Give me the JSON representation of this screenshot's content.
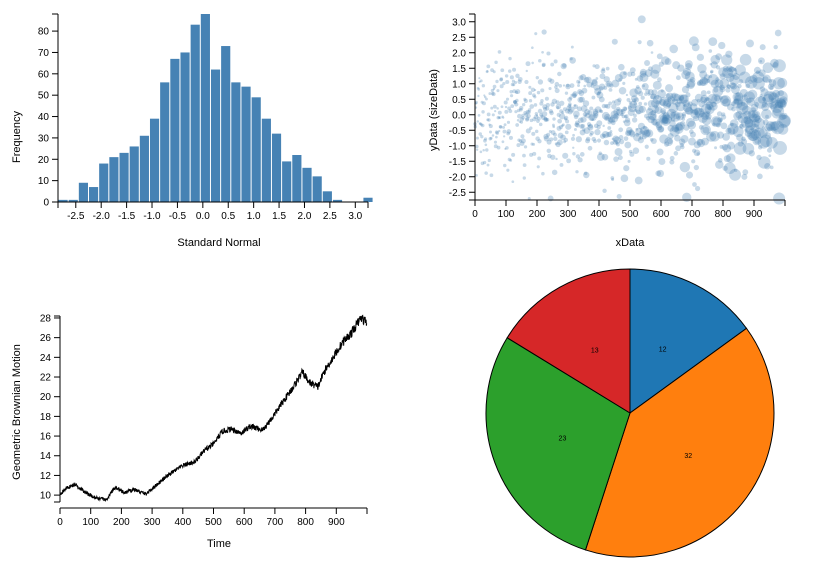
{
  "chart_data": [
    {
      "type": "bar",
      "subtype": "histogram",
      "xlabel": "Standard Normal",
      "ylabel": "Frequency",
      "xlim": [
        -2.85,
        3.25
      ],
      "ylim": [
        0,
        88
      ],
      "bin_width": 0.2,
      "bins_start": [
        -2.85,
        -2.65,
        -2.45,
        -2.25,
        -2.05,
        -1.85,
        -1.65,
        -1.45,
        -1.25,
        -1.05,
        -0.85,
        -0.65,
        -0.45,
        -0.25,
        -0.05,
        0.15,
        0.35,
        0.55,
        0.75,
        0.95,
        1.15,
        1.35,
        1.55,
        1.75,
        1.95,
        2.15,
        2.35,
        2.55,
        2.75,
        2.95,
        3.15
      ],
      "values": [
        1,
        1,
        9,
        7,
        18,
        21,
        23,
        26,
        31,
        39,
        56,
        67,
        70,
        83,
        88,
        62,
        73,
        56,
        54,
        49,
        39,
        32,
        19,
        22,
        16,
        12,
        5,
        1,
        0,
        0,
        2
      ],
      "xticks": [
        "-2.5",
        "-2.0",
        "-1.5",
        "-1.0",
        "-0.5",
        "0.0",
        "0.5",
        "1.0",
        "1.5",
        "2.0",
        "2.5",
        "3.0"
      ],
      "xtick_values": [
        -2.5,
        -2.0,
        -1.5,
        -1.0,
        -0.5,
        0.0,
        0.5,
        1.0,
        1.5,
        2.0,
        2.5,
        3.0
      ],
      "yticks": [
        "0",
        "10",
        "20",
        "30",
        "40",
        "50",
        "60",
        "70",
        "80"
      ],
      "ytick_values": [
        0,
        10,
        20,
        30,
        40,
        50,
        60,
        70,
        80
      ],
      "color": "#4682b4"
    },
    {
      "type": "scatter",
      "xlabel": "xData",
      "ylabel": "yData (sizeData)",
      "xlim": [
        0,
        1000
      ],
      "ylim": [
        -2.75,
        3.25
      ],
      "xticks": [
        "0",
        "100",
        "200",
        "300",
        "400",
        "500",
        "600",
        "700",
        "800",
        "900"
      ],
      "xtick_values": [
        0,
        100,
        200,
        300,
        400,
        500,
        600,
        700,
        800,
        900
      ],
      "yticks": [
        "-2.5",
        "-2.0",
        "-1.5",
        "-1.0",
        "-0.5",
        "0.0",
        "0.5",
        "1.0",
        "1.5",
        "2.0",
        "2.5",
        "3.0"
      ],
      "ytick_values": [
        -2.5,
        -2.0,
        -1.5,
        -1.0,
        -0.5,
        0.0,
        0.5,
        1.0,
        1.5,
        2.0,
        2.5,
        3.0
      ],
      "point_count": 1000,
      "note_size": "point size grows with x",
      "color": "#4682b4"
    },
    {
      "type": "line",
      "xlabel": "Time",
      "ylabel": "Geometric Brownian Motion",
      "xlim": [
        0,
        1000
      ],
      "ylim": [
        9.3,
        28.2
      ],
      "xticks": [
        "0",
        "100",
        "200",
        "300",
        "400",
        "500",
        "600",
        "700",
        "800",
        "900"
      ],
      "xtick_values": [
        0,
        100,
        200,
        300,
        400,
        500,
        600,
        700,
        800,
        900
      ],
      "yticks": [
        "10",
        "12",
        "14",
        "16",
        "18",
        "20",
        "22",
        "24",
        "26",
        "28"
      ],
      "ytick_values": [
        10,
        12,
        14,
        16,
        18,
        20,
        22,
        24,
        26,
        28
      ],
      "anchors": [
        [
          0,
          10.1
        ],
        [
          20,
          10.7
        ],
        [
          50,
          11.1
        ],
        [
          80,
          10.3
        ],
        [
          110,
          9.8
        ],
        [
          150,
          9.5
        ],
        [
          180,
          10.8
        ],
        [
          210,
          10.2
        ],
        [
          240,
          10.6
        ],
        [
          280,
          10.1
        ],
        [
          320,
          11.2
        ],
        [
          360,
          12.2
        ],
        [
          400,
          13.0
        ],
        [
          440,
          13.4
        ],
        [
          470,
          14.5
        ],
        [
          500,
          15.2
        ],
        [
          530,
          16.5
        ],
        [
          560,
          16.7
        ],
        [
          590,
          16.3
        ],
        [
          620,
          17.0
        ],
        [
          660,
          16.6
        ],
        [
          690,
          17.8
        ],
        [
          720,
          19.2
        ],
        [
          760,
          21.0
        ],
        [
          790,
          22.5
        ],
        [
          810,
          21.5
        ],
        [
          840,
          21.0
        ],
        [
          860,
          22.5
        ],
        [
          890,
          24.0
        ],
        [
          920,
          25.5
        ],
        [
          950,
          26.5
        ],
        [
          980,
          28.0
        ],
        [
          999,
          27.6
        ]
      ],
      "color": "#000000"
    },
    {
      "type": "pie",
      "values": [
        12,
        32,
        23,
        13
      ],
      "labels": [
        "12",
        "32",
        "23",
        "13"
      ],
      "colors": [
        "#1f77b4",
        "#ff7f0e",
        "#2ca02c",
        "#d62728"
      ]
    }
  ]
}
